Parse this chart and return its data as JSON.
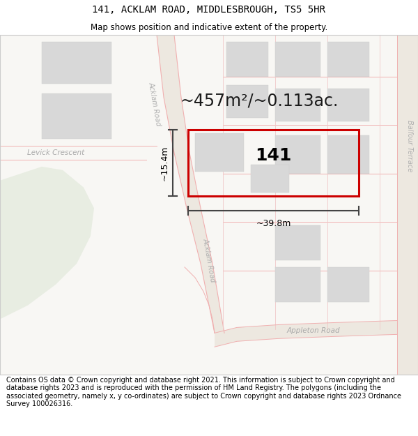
{
  "title_line1": "141, ACKLAM ROAD, MIDDLESBROUGH, TS5 5HR",
  "title_line2": "Map shows position and indicative extent of the property.",
  "area_text": "~457m²/~0.113ac.",
  "label_141": "141",
  "dim_width": "~39.8m",
  "dim_height": "~15.4m",
  "footer_text": "Contains OS data © Crown copyright and database right 2021. This information is subject to Crown copyright and database rights 2023 and is reproduced with the permission of HM Land Registry. The polygons (including the associated geometry, namely x, y co-ordinates) are subject to Crown copyright and database rights 2023 Ordnance Survey 100026316.",
  "map_bg": "#f7f5f2",
  "road_line_color": "#f0b0b0",
  "road_fill_color": "#f5e8e0",
  "acklam_road_label_color": "#b0b0b0",
  "balfour_label_color": "#b0b0b0",
  "levick_label_color": "#aaaaaa",
  "appleton_label_color": "#aaaaaa",
  "property_rect_color": "#cc0000",
  "building_color": "#d8d8d8",
  "building_edge": "#cccccc",
  "green_color": "#e8ede2",
  "dim_line_color": "#444444",
  "text_color": "#000000",
  "area_text_color": "#1a1a1a",
  "grid_color": "#f0c8c8",
  "title_fontsize": 10,
  "subtitle_fontsize": 8.5,
  "footer_fontsize": 7,
  "area_fontsize": 17,
  "label_fontsize": 18,
  "road_label_fontsize": 7,
  "map_border_color": "#cccccc"
}
